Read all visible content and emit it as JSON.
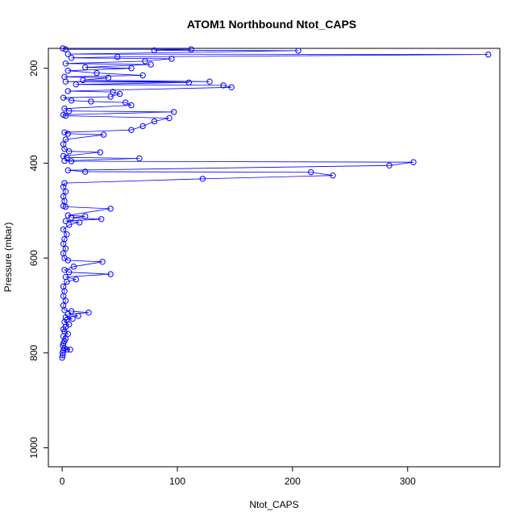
{
  "chart_data": {
    "type": "scatter",
    "title": "ATOM1 Northbound Ntot_CAPS",
    "xlabel": "Ntot_CAPS",
    "ylabel": "Pressure (mbar)",
    "xlim": [
      -12,
      380
    ],
    "ylim": [
      1040,
      158
    ],
    "y_reversed": true,
    "x_ticks": [
      0,
      100,
      200,
      300
    ],
    "y_ticks": [
      200,
      400,
      600,
      800,
      1000
    ],
    "grid": false,
    "legend": "none",
    "colors": {
      "series": "#0000ff",
      "axis": "#000000"
    },
    "series": [
      {
        "marker": "open-circle",
        "connected": true,
        "points": [
          [
            0,
            810
          ],
          [
            0.5,
            805
          ],
          [
            0.3,
            800
          ],
          [
            1,
            795
          ],
          [
            4,
            793
          ],
          [
            7,
            793
          ],
          [
            2,
            790
          ],
          [
            0.5,
            785
          ],
          [
            1,
            780
          ],
          [
            2,
            775
          ],
          [
            3,
            770
          ],
          [
            1,
            765
          ],
          [
            5,
            760
          ],
          [
            2,
            755
          ],
          [
            1,
            750
          ],
          [
            3,
            745
          ],
          [
            6,
            740
          ],
          [
            2,
            735
          ],
          [
            4,
            730
          ],
          [
            9,
            728
          ],
          [
            3,
            725
          ],
          [
            14,
            722
          ],
          [
            5,
            718
          ],
          [
            23,
            715
          ],
          [
            8,
            712
          ],
          [
            2,
            710
          ],
          [
            1,
            700
          ],
          [
            3,
            690
          ],
          [
            1,
            680
          ],
          [
            2,
            670
          ],
          [
            1,
            660
          ],
          [
            4,
            650
          ],
          [
            12,
            645
          ],
          [
            3,
            640
          ],
          [
            42,
            634
          ],
          [
            6,
            630
          ],
          [
            2,
            625
          ],
          [
            10,
            618
          ],
          [
            35,
            608
          ],
          [
            5,
            605
          ],
          [
            2,
            600
          ],
          [
            1,
            590
          ],
          [
            3,
            580
          ],
          [
            1,
            570
          ],
          [
            2,
            560
          ],
          [
            4,
            550
          ],
          [
            1,
            540
          ],
          [
            6,
            530
          ],
          [
            15,
            525
          ],
          [
            3,
            522
          ],
          [
            34,
            518
          ],
          [
            8,
            515
          ],
          [
            20,
            512
          ],
          [
            5,
            510
          ],
          [
            42,
            496
          ],
          [
            3,
            492
          ],
          [
            1,
            490
          ],
          [
            2,
            480
          ],
          [
            1,
            470
          ],
          [
            3,
            460
          ],
          [
            1,
            450
          ],
          [
            2,
            442
          ],
          [
            122,
            433
          ],
          [
            235,
            426
          ],
          [
            216,
            419
          ],
          [
            20,
            418
          ],
          [
            5,
            415
          ],
          [
            284,
            405
          ],
          [
            305,
            398
          ],
          [
            8,
            396
          ],
          [
            2,
            395
          ],
          [
            67,
            390
          ],
          [
            4,
            388
          ],
          [
            1,
            385
          ],
          [
            33,
            377
          ],
          [
            6,
            375
          ],
          [
            2,
            370
          ],
          [
            1,
            360
          ],
          [
            3,
            350
          ],
          [
            36,
            340
          ],
          [
            5,
            338
          ],
          [
            2,
            335
          ],
          [
            60,
            330
          ],
          [
            70,
            322
          ],
          [
            80,
            312
          ],
          [
            93,
            305
          ],
          [
            3,
            300
          ],
          [
            1,
            298
          ],
          [
            97,
            292
          ],
          [
            6,
            290
          ],
          [
            2,
            285
          ],
          [
            60,
            278
          ],
          [
            55,
            272
          ],
          [
            25,
            270
          ],
          [
            8,
            268
          ],
          [
            1,
            262
          ],
          [
            42,
            260
          ],
          [
            50,
            254
          ],
          [
            44,
            250
          ],
          [
            5,
            248
          ],
          [
            147,
            240
          ],
          [
            140,
            236
          ],
          [
            12,
            234
          ],
          [
            110,
            230
          ],
          [
            3,
            228
          ],
          [
            128,
            228
          ],
          [
            18,
            225
          ],
          [
            40,
            220
          ],
          [
            2,
            218
          ],
          [
            70,
            215
          ],
          [
            30,
            210
          ],
          [
            5,
            205
          ],
          [
            60,
            200
          ],
          [
            20,
            198
          ],
          [
            77,
            192
          ],
          [
            3,
            190
          ],
          [
            72,
            185
          ],
          [
            95,
            180
          ],
          [
            8,
            178
          ],
          [
            48,
            176
          ],
          [
            370,
            171
          ],
          [
            5,
            170
          ],
          [
            205,
            163
          ],
          [
            80,
            162
          ],
          [
            112,
            160
          ],
          [
            3,
            160
          ],
          [
            0.5,
            158
          ]
        ]
      }
    ]
  }
}
